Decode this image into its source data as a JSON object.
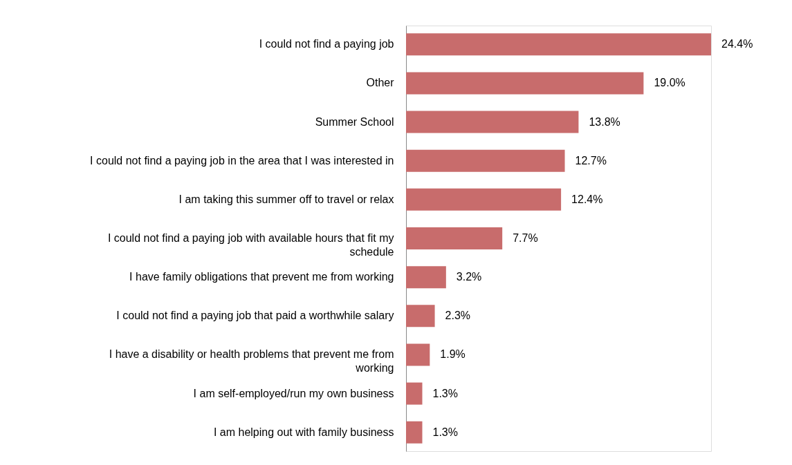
{
  "chart_data": {
    "type": "bar",
    "orientation": "horizontal",
    "categories": [
      "I could not find a paying job",
      "Other",
      "Summer School",
      "I could not find a paying job in the area that I was interested in",
      "I am taking this summer off to travel or relax",
      "I could not find a paying job with available hours that fit my schedule",
      "I have family obligations that prevent me from working",
      "I could not find a paying job that paid a worthwhile salary",
      "I have a disability or health problems that prevent me from working",
      "I am self-employed/run my own business",
      "I am helping out with family business"
    ],
    "values": [
      24.4,
      19.0,
      13.8,
      12.7,
      12.4,
      7.7,
      3.2,
      2.3,
      1.9,
      1.3,
      1.3
    ],
    "value_labels": [
      "24.4%",
      "19.0%",
      "13.8%",
      "12.7%",
      "12.4%",
      "7.7%",
      "3.2%",
      "2.3%",
      "1.9%",
      "1.3%",
      "1.3%"
    ],
    "color": "#c86c6c",
    "grid": false
  }
}
